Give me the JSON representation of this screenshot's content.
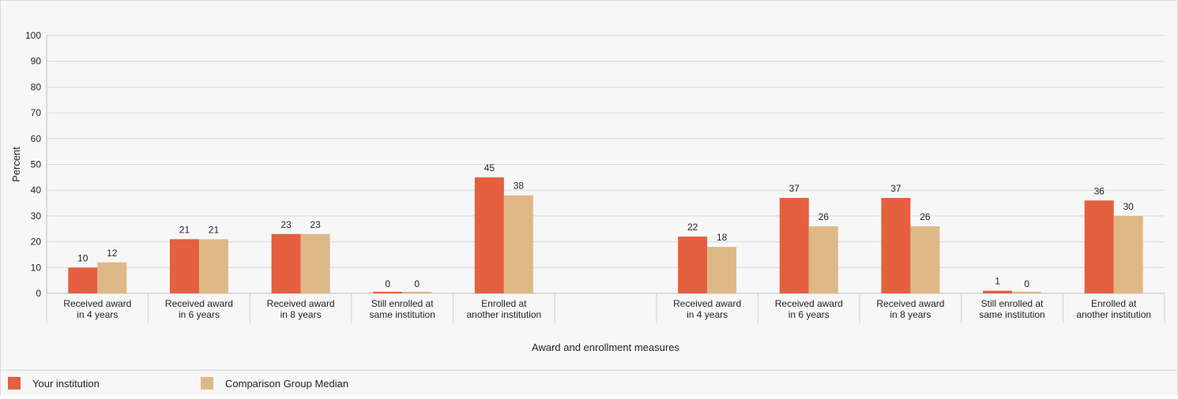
{
  "chart_data": {
    "type": "bar",
    "xlabel": "Award and enrollment measures",
    "ylabel": "Percent",
    "ylim": [
      0,
      100
    ],
    "yticks": [
      0,
      10,
      20,
      30,
      40,
      50,
      60,
      70,
      80,
      90,
      100
    ],
    "grid": true,
    "legend_placement": "bottom-left",
    "categories": [
      [
        "Received award",
        "in 4 years"
      ],
      [
        "Received award",
        "in 6 years"
      ],
      [
        "Received award",
        "in 8 years"
      ],
      [
        "Still enrolled at",
        "same institution"
      ],
      [
        "Enrolled at",
        "another institution"
      ],
      [
        "",
        ""
      ],
      [
        "Received award",
        "in 4 years"
      ],
      [
        "Received award",
        "in 6 years"
      ],
      [
        "Received award",
        "in 8 years"
      ],
      [
        "Still enrolled at",
        "same institution"
      ],
      [
        "Enrolled at",
        "another institution"
      ]
    ],
    "series": [
      {
        "name": "Your institution",
        "color": "#e4603f",
        "values": [
          10,
          21,
          23,
          0,
          45,
          null,
          22,
          37,
          37,
          1,
          36
        ]
      },
      {
        "name": "Comparison Group Median",
        "color": "#dfb887",
        "values": [
          12,
          21,
          23,
          0,
          38,
          null,
          18,
          26,
          26,
          0,
          30
        ]
      }
    ]
  }
}
